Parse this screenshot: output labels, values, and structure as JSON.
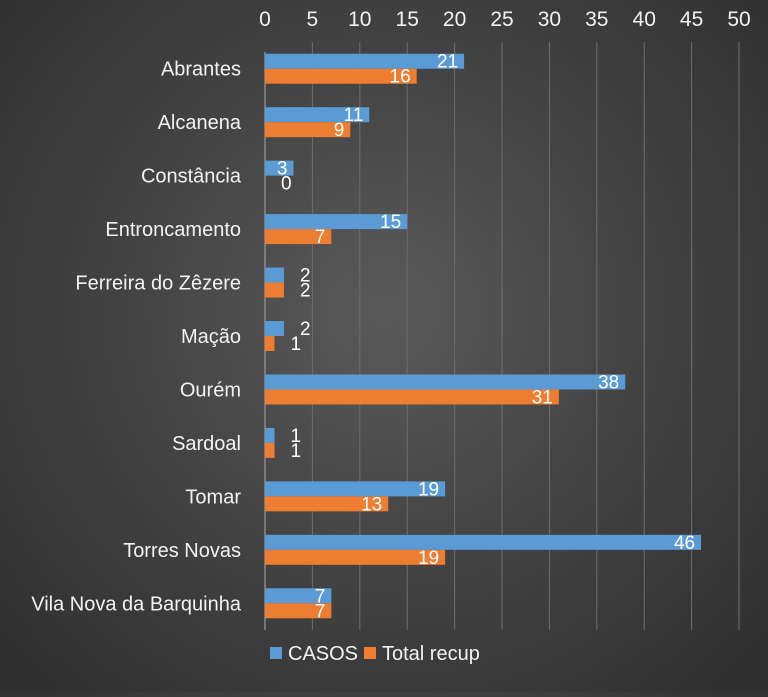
{
  "chart_data": {
    "type": "bar",
    "orientation": "horizontal",
    "categories": [
      "Abrantes",
      "Alcanena",
      "Constância",
      "Entroncamento",
      "Ferreira do Zêzere",
      "Mação",
      "Ourém",
      "Sardoal",
      "Tomar",
      "Torres Novas",
      "Vila Nova da Barquinha"
    ],
    "series": [
      {
        "name": "CASOS",
        "color": "#5b9bd5",
        "values": [
          21,
          11,
          3,
          15,
          2,
          2,
          38,
          1,
          19,
          46,
          7
        ]
      },
      {
        "name": "Total recup",
        "color": "#ed7d31",
        "values": [
          16,
          9,
          0,
          7,
          2,
          1,
          31,
          1,
          13,
          19,
          7
        ]
      }
    ],
    "xlim": [
      0,
      50
    ],
    "xticks": [
      0,
      5,
      10,
      15,
      20,
      25,
      30,
      35,
      40,
      45,
      50
    ],
    "x_axis_position": "top",
    "grid": true,
    "data_labels": true,
    "legend": "bottom",
    "title": "",
    "xlabel": "",
    "ylabel": ""
  }
}
